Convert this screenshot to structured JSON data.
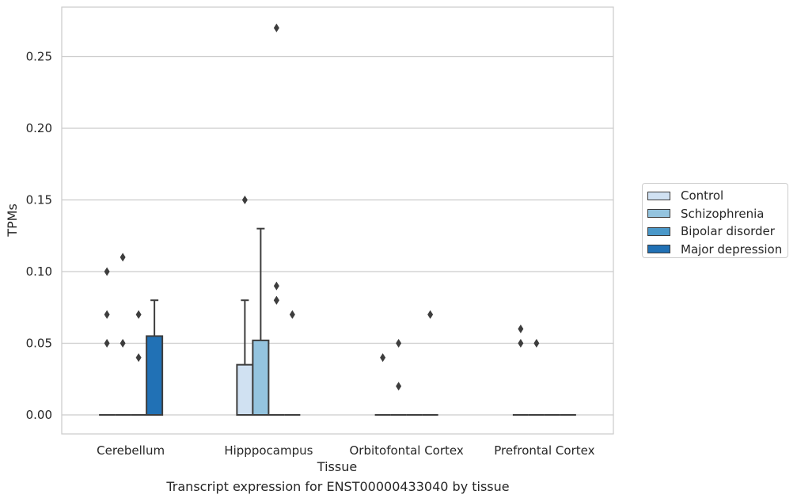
{
  "chart_data": {
    "type": "box",
    "caption": "Transcript expression for ENST00000433040 by tissue",
    "xlabel": "Tissue",
    "ylabel": "TPMs",
    "ylim": [
      -0.013,
      0.285
    ],
    "yticks": [
      "0.00",
      "0.05",
      "0.10",
      "0.15",
      "0.20",
      "0.25"
    ],
    "ytick_values": [
      0.0,
      0.05,
      0.1,
      0.15,
      0.2,
      0.25
    ],
    "grid": true,
    "legend_position": "right",
    "categories": [
      "Cerebellum",
      "Hipppocampus",
      "Orbitofontal Cortex",
      "Prefrontal Cortex"
    ],
    "series": [
      {
        "name": "Control",
        "color": "#d0e1f2",
        "boxes": [
          {
            "q1": 0,
            "median": 0,
            "q3": 0,
            "whisker_low": 0,
            "whisker_high": 0,
            "outliers": [
              0.05,
              0.07,
              0.1
            ]
          },
          {
            "q1": 0,
            "median": 0,
            "q3": 0.035,
            "whisker_low": 0,
            "whisker_high": 0.08,
            "outliers": [
              0.15
            ]
          },
          {
            "q1": 0,
            "median": 0,
            "q3": 0,
            "whisker_low": 0,
            "whisker_high": 0,
            "outliers": [
              0.04
            ]
          },
          {
            "q1": 0,
            "median": 0,
            "q3": 0,
            "whisker_low": 0,
            "whisker_high": 0,
            "outliers": [
              0.05,
              0.06
            ]
          }
        ]
      },
      {
        "name": "Schizophrenia",
        "color": "#94c4df",
        "boxes": [
          {
            "q1": 0,
            "median": 0,
            "q3": 0,
            "whisker_low": 0,
            "whisker_high": 0,
            "outliers": [
              0.05,
              0.11
            ]
          },
          {
            "q1": 0,
            "median": 0,
            "q3": 0.052,
            "whisker_low": 0,
            "whisker_high": 0.13,
            "outliers": []
          },
          {
            "q1": 0,
            "median": 0,
            "q3": 0,
            "whisker_low": 0,
            "whisker_high": 0,
            "outliers": [
              0.02,
              0.05
            ]
          },
          {
            "q1": 0,
            "median": 0,
            "q3": 0,
            "whisker_low": 0,
            "whisker_high": 0,
            "outliers": [
              0.05
            ]
          }
        ]
      },
      {
        "name": "Bipolar disorder",
        "color": "#4a98c9",
        "boxes": [
          {
            "q1": 0,
            "median": 0,
            "q3": 0,
            "whisker_low": 0,
            "whisker_high": 0,
            "outliers": [
              0.04,
              0.07
            ]
          },
          {
            "q1": 0,
            "median": 0,
            "q3": 0,
            "whisker_low": 0,
            "whisker_high": 0,
            "outliers": [
              0.08,
              0.08,
              0.09,
              0.27
            ]
          },
          {
            "q1": 0,
            "median": 0,
            "q3": 0,
            "whisker_low": 0,
            "whisker_high": 0,
            "outliers": []
          },
          {
            "q1": 0,
            "median": 0,
            "q3": 0,
            "whisker_low": 0,
            "whisker_high": 0,
            "outliers": []
          }
        ]
      },
      {
        "name": "Major depression",
        "color": "#2171b5",
        "boxes": [
          {
            "q1": 0,
            "median": 0,
            "q3": 0.055,
            "whisker_low": 0,
            "whisker_high": 0.08,
            "outliers": []
          },
          {
            "q1": 0,
            "median": 0,
            "q3": 0,
            "whisker_low": 0,
            "whisker_high": 0,
            "outliers": [
              0.07
            ]
          },
          {
            "q1": 0,
            "median": 0,
            "q3": 0,
            "whisker_low": 0,
            "whisker_high": 0,
            "outliers": [
              0.07
            ]
          },
          {
            "q1": 0,
            "median": 0,
            "q3": 0,
            "whisker_low": 0,
            "whisker_high": 0,
            "outliers": []
          }
        ]
      }
    ]
  }
}
